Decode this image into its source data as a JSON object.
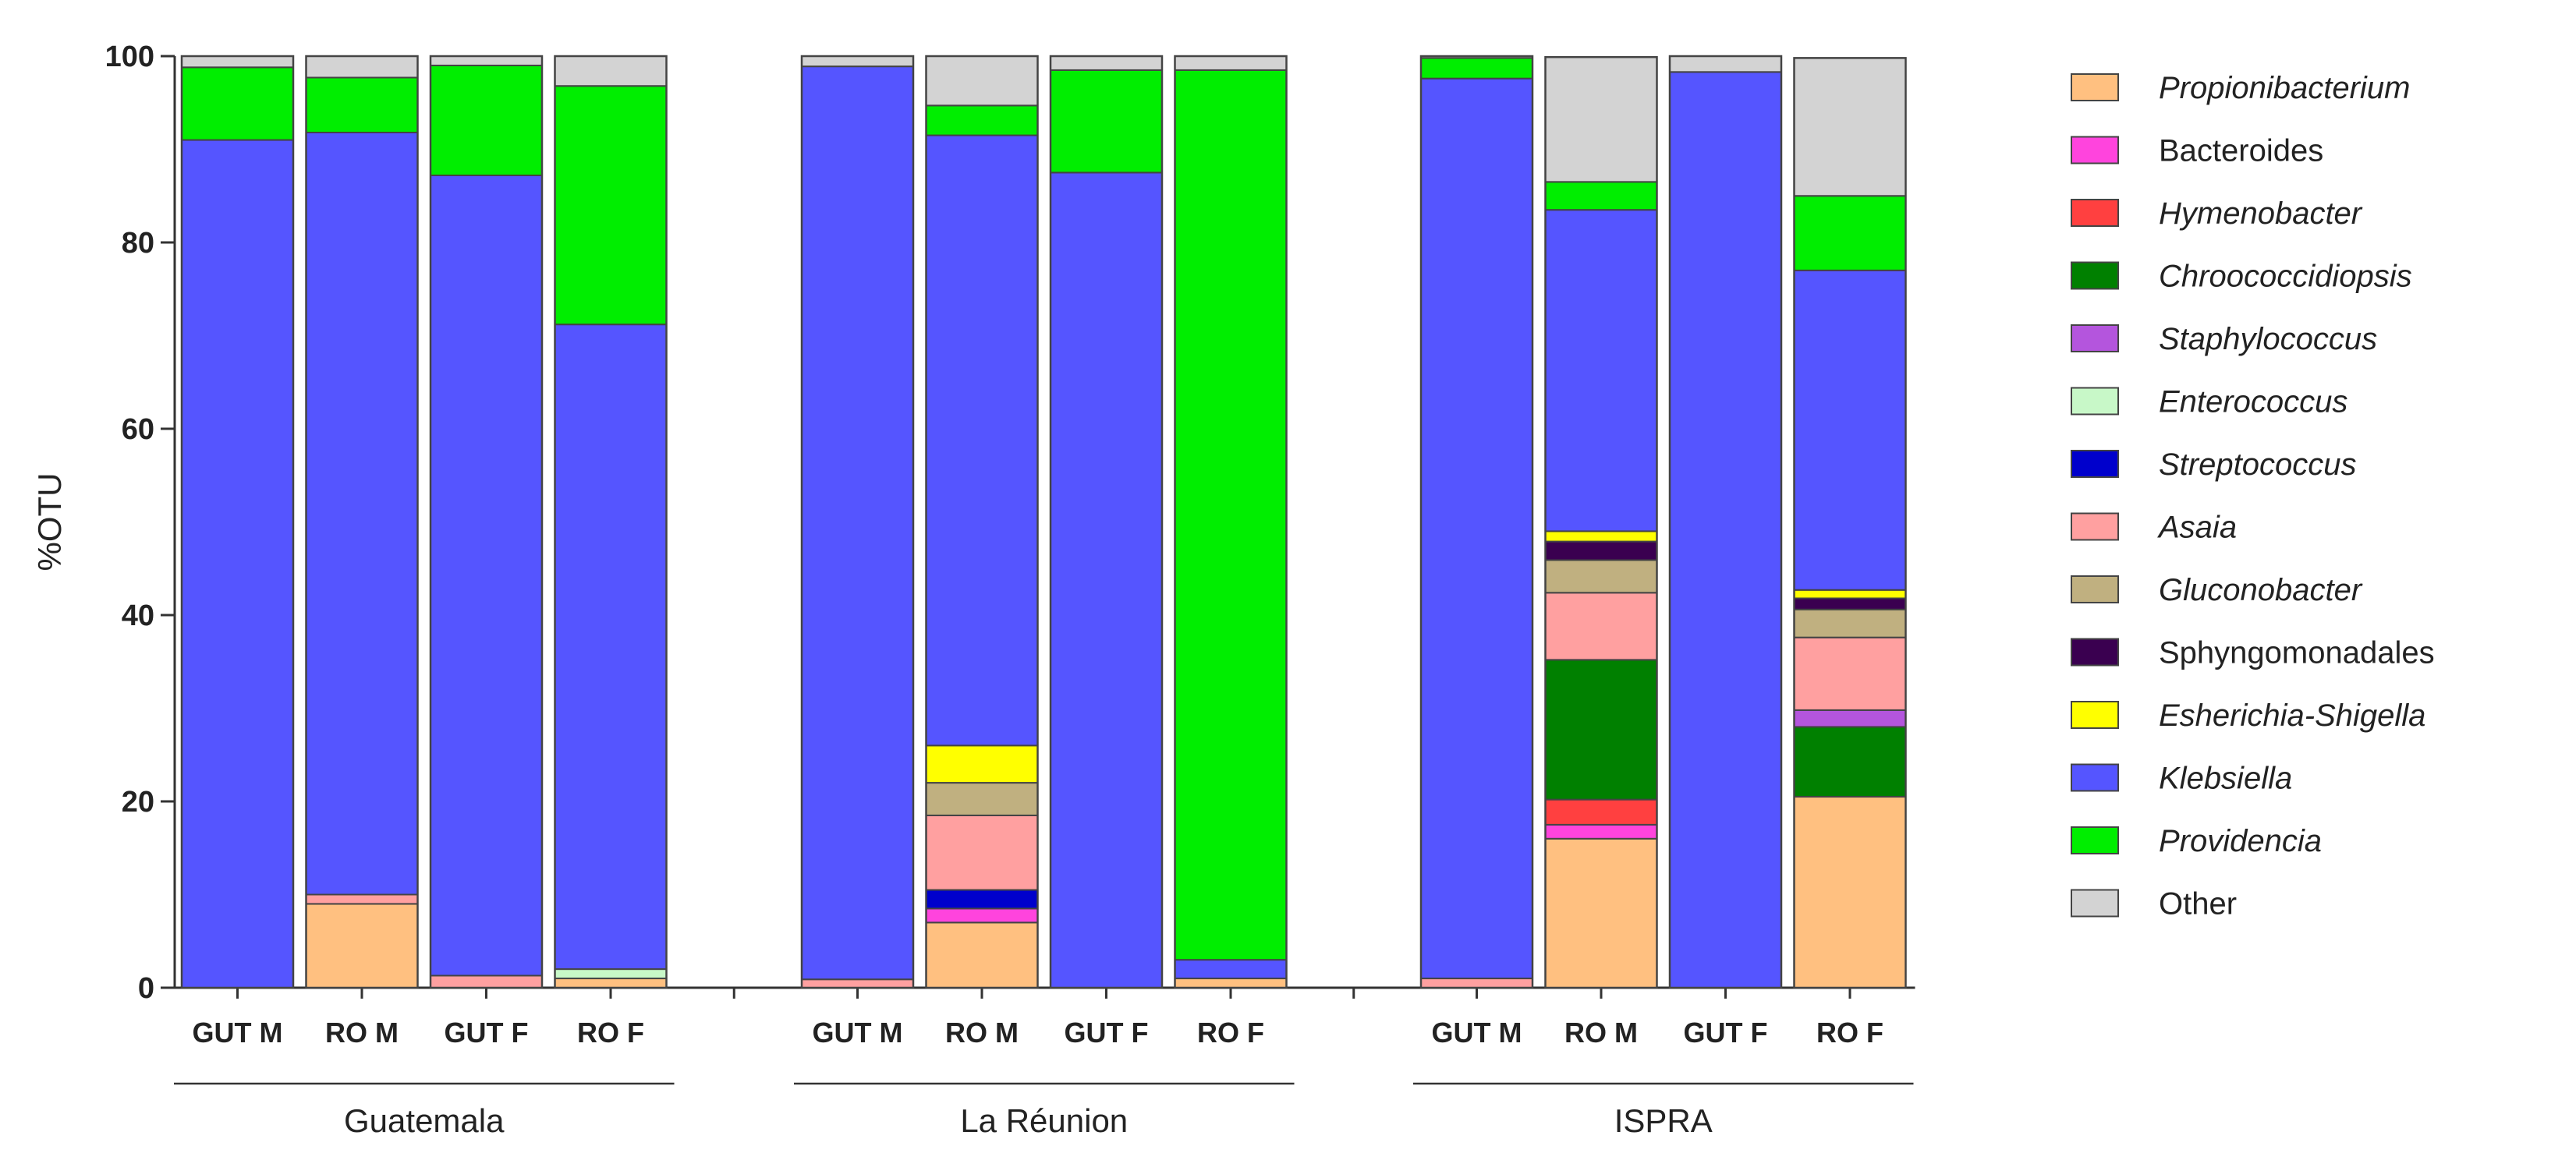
{
  "chart_data": {
    "type": "bar",
    "stacked": true,
    "title": "",
    "xlabel": "",
    "ylabel": "%OTU",
    "ylim": [
      0,
      100
    ],
    "yticks": [
      0,
      20,
      40,
      60,
      80,
      100
    ],
    "grid": false,
    "legend_position": "right",
    "groups": [
      {
        "name": "Guatemala",
        "categories": [
          "GUT M",
          "RO M",
          "GUT F",
          "RO F"
        ]
      },
      {
        "name": "La Réunion",
        "categories": [
          "GUT M",
          "RO M",
          "GUT F",
          "RO F"
        ]
      },
      {
        "name": "ISPRA",
        "categories": [
          "GUT M",
          "RO M",
          "GUT F",
          "RO F"
        ]
      }
    ],
    "series": [
      {
        "name": "Propionibacterium",
        "italic": true,
        "color": "#FFC080",
        "values": [
          0,
          9,
          0,
          1,
          0,
          7,
          0,
          1,
          0,
          16,
          0,
          20.5
        ]
      },
      {
        "name": "Bacteroides",
        "italic": false,
        "color": "#FF44DD",
        "values": [
          0,
          0,
          0,
          0,
          0,
          1.5,
          0,
          0,
          0,
          1.5,
          0,
          0
        ]
      },
      {
        "name": "Hymenobacter",
        "italic": true,
        "color": "#FF4040",
        "values": [
          0,
          0,
          0,
          0,
          0,
          0,
          0,
          0,
          0,
          2.7,
          0,
          0
        ]
      },
      {
        "name": "Chroococcidiopsis",
        "italic": true,
        "color": "#008000",
        "values": [
          0,
          0,
          0,
          0,
          0,
          0,
          0,
          0,
          0,
          15,
          0,
          7.5
        ]
      },
      {
        "name": "Staphylococcus",
        "italic": true,
        "color": "#B455DD",
        "values": [
          0,
          0,
          0,
          0,
          0,
          0,
          0,
          0,
          0,
          0,
          0,
          1.8
        ]
      },
      {
        "name": "Enterococcus",
        "italic": true,
        "color": "#C8F8C8",
        "values": [
          0,
          0,
          0,
          1,
          0,
          0,
          0,
          0,
          0,
          0,
          0,
          0
        ]
      },
      {
        "name": "Streptococcus",
        "italic": true,
        "color": "#0000CC",
        "values": [
          0,
          0,
          0,
          0,
          0,
          2,
          0,
          0,
          0,
          0,
          0,
          0
        ]
      },
      {
        "name": "Asaia",
        "italic": true,
        "color": "#FFA0A0",
        "values": [
          0,
          1,
          1.3,
          0,
          0.9,
          8,
          0,
          0,
          1,
          7.2,
          0,
          7.8
        ]
      },
      {
        "name": "Gluconobacter",
        "italic": true,
        "color": "#C0B080",
        "values": [
          0,
          0,
          0,
          0,
          0,
          3.5,
          0,
          0,
          0,
          3.5,
          0,
          3
        ]
      },
      {
        "name": "Sphyngomonadales",
        "italic": false,
        "color": "#3A0050",
        "values": [
          0,
          0,
          0,
          0,
          0,
          0,
          0,
          0,
          0,
          2,
          0,
          1.2
        ]
      },
      {
        "name": "Esherichia-Shigella",
        "italic": true,
        "color": "#FFFF00",
        "values": [
          0,
          0,
          0,
          0,
          0,
          4,
          0,
          0,
          0,
          1.1,
          0,
          0.9
        ]
      },
      {
        "name": "Klebsiella",
        "italic": true,
        "color": "#5555FF",
        "values": [
          91,
          81.8,
          85.9,
          69.2,
          98,
          65.5,
          87.5,
          2,
          96.6,
          34.5,
          98.3,
          34.3
        ]
      },
      {
        "name": "Providencia",
        "italic": true,
        "color": "#00EE00",
        "values": [
          7.8,
          5.9,
          11.8,
          25.6,
          0,
          3.2,
          11,
          95.5,
          2.2,
          3,
          0,
          8
        ]
      },
      {
        "name": "Other",
        "italic": false,
        "color": "#D3D3D3",
        "values": [
          1.2,
          2.3,
          1,
          3.2,
          1.1,
          5.3,
          1.5,
          1.5,
          0.2,
          13.4,
          1.7,
          14.8
        ]
      }
    ]
  }
}
